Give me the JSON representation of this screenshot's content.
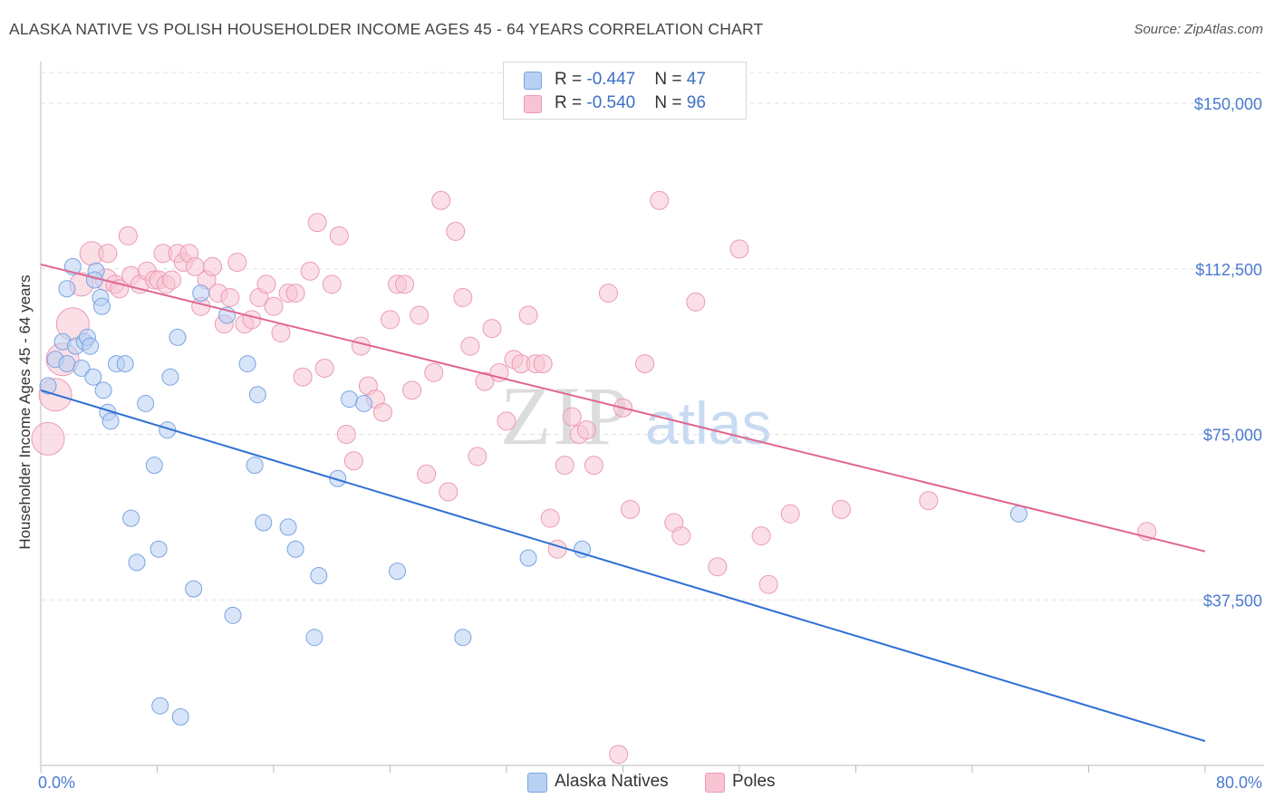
{
  "title": "ALASKA NATIVE VS POLISH HOUSEHOLDER INCOME AGES 45 - 64 YEARS CORRELATION CHART",
  "source": "Source: ZipAtlas.com",
  "watermark": {
    "zip": "ZIP",
    "atlas": "atlas"
  },
  "legend": {
    "series1": {
      "r_label": "R = ",
      "r_value": "-0.447",
      "n_label": "N = ",
      "n_value": "47"
    },
    "series2": {
      "r_label": "R = ",
      "r_value": "-0.540",
      "n_label": "N = ",
      "n_value": "96"
    }
  },
  "bottom_legend": [
    "Alaska Natives",
    "Poles"
  ],
  "colors": {
    "blue_fill": "#b8d0f2",
    "blue_stroke": "#7aa4e0",
    "blue_line": "#2f6fd4",
    "pink_fill": "#f8c4d4",
    "pink_stroke": "#eb9ab4",
    "pink_line": "#e0668f",
    "grid": "#e2e2e2",
    "tick_text": "#4a7bd0"
  },
  "chart_data": {
    "type": "scatter",
    "title": "ALASKA NATIVE VS POLISH HOUSEHOLDER INCOME AGES 45 - 64 YEARS CORRELATION CHART",
    "xlabel": "",
    "ylabel": "Householder Income Ages 45 - 64 years",
    "xlim": [
      0,
      80
    ],
    "ylim": [
      0,
      157000
    ],
    "x_tick_labels": [
      "0.0%",
      "80.0%"
    ],
    "y_ticks": [
      37500,
      75000,
      112500,
      150000
    ],
    "y_tick_labels": [
      "$37,500",
      "$75,000",
      "$112,500",
      "$150,000"
    ],
    "grid": true,
    "legend_position": "top-center",
    "series": [
      {
        "name": "Alaska Natives",
        "r": -0.447,
        "n": 47,
        "trend": {
          "x": [
            0,
            80
          ],
          "y": [
            85000,
            5500
          ]
        },
        "points": [
          [
            0.5,
            86000,
            9
          ],
          [
            1.0,
            92000,
            9
          ],
          [
            1.5,
            96000,
            9
          ],
          [
            1.8,
            108000,
            9
          ],
          [
            1.8,
            91000,
            9
          ],
          [
            2.2,
            113000,
            9
          ],
          [
            2.4,
            95000,
            9
          ],
          [
            2.8,
            90000,
            9
          ],
          [
            3.0,
            96000,
            9
          ],
          [
            3.2,
            97000,
            9
          ],
          [
            3.4,
            95000,
            9
          ],
          [
            3.6,
            88000,
            9
          ],
          [
            3.8,
            112000,
            9
          ],
          [
            4.1,
            106000,
            9
          ],
          [
            3.7,
            110000,
            9
          ],
          [
            4.2,
            104000,
            9
          ],
          [
            4.3,
            85000,
            9
          ],
          [
            4.6,
            80000,
            9
          ],
          [
            4.8,
            78000,
            9
          ],
          [
            5.2,
            91000,
            9
          ],
          [
            5.8,
            91000,
            9
          ],
          [
            6.2,
            56000,
            9
          ],
          [
            6.6,
            46000,
            9
          ],
          [
            7.2,
            82000,
            9
          ],
          [
            7.8,
            68000,
            9
          ],
          [
            8.1,
            49000,
            9
          ],
          [
            8.2,
            13500,
            9
          ],
          [
            8.7,
            76000,
            9
          ],
          [
            8.9,
            88000,
            9
          ],
          [
            9.4,
            97000,
            9
          ],
          [
            9.6,
            11000,
            9
          ],
          [
            10.5,
            40000,
            9
          ],
          [
            11.0,
            107000,
            9
          ],
          [
            12.8,
            102000,
            9
          ],
          [
            13.2,
            34000,
            9
          ],
          [
            14.2,
            91000,
            9
          ],
          [
            14.7,
            68000,
            9
          ],
          [
            14.9,
            84000,
            9
          ],
          [
            15.3,
            55000,
            9
          ],
          [
            17.0,
            54000,
            9
          ],
          [
            17.5,
            49000,
            9
          ],
          [
            18.8,
            29000,
            9
          ],
          [
            19.1,
            43000,
            9
          ],
          [
            20.4,
            65000,
            9
          ],
          [
            21.2,
            83000,
            9
          ],
          [
            22.2,
            82000,
            9
          ],
          [
            24.5,
            44000,
            9
          ],
          [
            29.0,
            29000,
            9
          ],
          [
            33.5,
            47000,
            9
          ],
          [
            37.2,
            49000,
            9
          ],
          [
            67.2,
            57000,
            9
          ]
        ]
      },
      {
        "name": "Poles",
        "r": -0.54,
        "n": 96,
        "trend": {
          "x": [
            0,
            80
          ],
          "y": [
            113500,
            48500
          ]
        },
        "points": [
          [
            0.5,
            74000,
            18
          ],
          [
            1.0,
            84000,
            18
          ],
          [
            1.5,
            92000,
            18
          ],
          [
            2.2,
            100000,
            18
          ],
          [
            2.8,
            109000,
            13
          ],
          [
            3.5,
            116000,
            13
          ],
          [
            4.5,
            110000,
            12
          ],
          [
            4.6,
            116000,
            10
          ],
          [
            5.1,
            109000,
            10
          ],
          [
            5.4,
            108000,
            10
          ],
          [
            6.0,
            120000,
            10
          ],
          [
            6.2,
            111000,
            10
          ],
          [
            6.8,
            109000,
            10
          ],
          [
            7.3,
            112000,
            10
          ],
          [
            7.8,
            110000,
            10
          ],
          [
            8.1,
            110000,
            10
          ],
          [
            8.4,
            116000,
            10
          ],
          [
            8.6,
            109000,
            10
          ],
          [
            9.0,
            110000,
            10
          ],
          [
            9.4,
            116000,
            10
          ],
          [
            9.8,
            114000,
            10
          ],
          [
            10.2,
            116000,
            10
          ],
          [
            10.6,
            113000,
            10
          ],
          [
            11.0,
            104000,
            10
          ],
          [
            11.4,
            110000,
            10
          ],
          [
            11.8,
            113000,
            10
          ],
          [
            12.2,
            107000,
            10
          ],
          [
            12.6,
            100000,
            10
          ],
          [
            13.0,
            106000,
            10
          ],
          [
            13.5,
            114000,
            10
          ],
          [
            14.0,
            100000,
            10
          ],
          [
            14.5,
            101000,
            10
          ],
          [
            15.0,
            106000,
            10
          ],
          [
            15.5,
            109000,
            10
          ],
          [
            16.0,
            104000,
            10
          ],
          [
            16.5,
            98000,
            10
          ],
          [
            17.0,
            107000,
            10
          ],
          [
            17.5,
            107000,
            10
          ],
          [
            18.0,
            88000,
            10
          ],
          [
            18.5,
            112000,
            10
          ],
          [
            19.0,
            123000,
            10
          ],
          [
            19.5,
            90000,
            10
          ],
          [
            20.0,
            109000,
            10
          ],
          [
            20.5,
            120000,
            10
          ],
          [
            21.0,
            75000,
            10
          ],
          [
            21.5,
            69000,
            10
          ],
          [
            22.0,
            95000,
            10
          ],
          [
            22.5,
            86000,
            10
          ],
          [
            23.0,
            83000,
            10
          ],
          [
            23.5,
            80000,
            10
          ],
          [
            24.0,
            101000,
            10
          ],
          [
            24.5,
            109000,
            10
          ],
          [
            25.0,
            109000,
            10
          ],
          [
            25.5,
            85000,
            10
          ],
          [
            26.0,
            102000,
            10
          ],
          [
            26.5,
            66000,
            10
          ],
          [
            27.0,
            89000,
            10
          ],
          [
            27.5,
            128000,
            10
          ],
          [
            28.0,
            62000,
            10
          ],
          [
            28.5,
            121000,
            10
          ],
          [
            29.0,
            106000,
            10
          ],
          [
            29.5,
            95000,
            10
          ],
          [
            30.0,
            70000,
            10
          ],
          [
            30.5,
            87000,
            10
          ],
          [
            31.0,
            99000,
            10
          ],
          [
            31.5,
            89000,
            10
          ],
          [
            32.0,
            78000,
            10
          ],
          [
            32.5,
            92000,
            10
          ],
          [
            33.0,
            91000,
            10
          ],
          [
            33.5,
            102000,
            10
          ],
          [
            34.0,
            91000,
            10
          ],
          [
            34.5,
            91000,
            10
          ],
          [
            35.0,
            56000,
            10
          ],
          [
            35.5,
            49000,
            10
          ],
          [
            36.0,
            68000,
            10
          ],
          [
            36.5,
            79000,
            10
          ],
          [
            37.0,
            75000,
            10
          ],
          [
            37.5,
            76000,
            10
          ],
          [
            38.0,
            68000,
            10
          ],
          [
            39.0,
            107000,
            10
          ],
          [
            40.0,
            81000,
            10
          ],
          [
            40.5,
            58000,
            10
          ],
          [
            41.5,
            91000,
            10
          ],
          [
            42.5,
            128000,
            10
          ],
          [
            43.5,
            55000,
            10
          ],
          [
            44.0,
            52000,
            10
          ],
          [
            45.0,
            105000,
            10
          ],
          [
            46.5,
            45000,
            10
          ],
          [
            48.0,
            117000,
            10
          ],
          [
            49.5,
            52000,
            10
          ],
          [
            50.0,
            41000,
            10
          ],
          [
            51.5,
            57000,
            10
          ],
          [
            55.0,
            58000,
            10
          ],
          [
            61.0,
            60000,
            10
          ],
          [
            76.0,
            53000,
            10
          ],
          [
            39.7,
            2500,
            10
          ]
        ]
      }
    ]
  }
}
